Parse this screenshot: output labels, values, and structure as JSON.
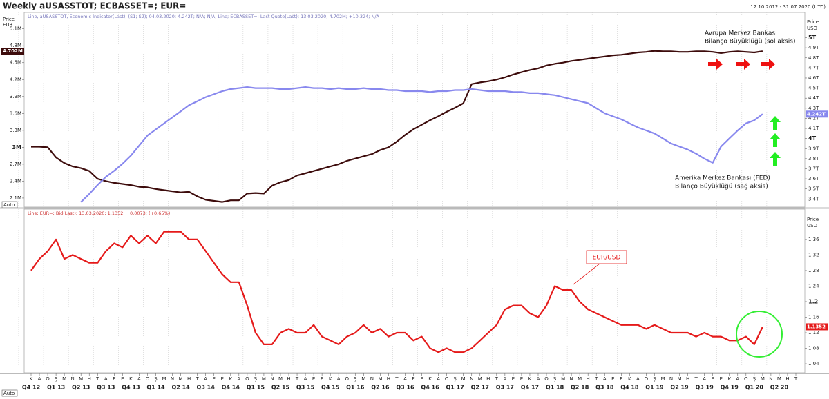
{
  "header": {
    "title": "Weekly aUSASSTOT; ECBASSET=; EUR=",
    "range": "12.10.2012 - 31.07.2020 (UTC)"
  },
  "chart_data": [
    {
      "type": "line",
      "legend": "Line, aUSASSTOT, Economic Indicator(Last), (S1; S2); 04.03.2020; 4.242T; N/A; N/A; Line; ECBASSET=; Last Quote(Last); 13.03.2020; 4.702M; +10.324; N/A",
      "ylabel": [
        "Price",
        "EUR"
      ],
      "y2label": [
        "Price",
        "USD"
      ],
      "auto": "Auto",
      "ylim": [
        1.94,
        5.39
      ],
      "yticks": [
        {
          "value": 5.1,
          "label": "5.1M"
        },
        {
          "value": 4.8,
          "label": "4.8M"
        },
        {
          "value": 4.5,
          "label": "4.5M"
        },
        {
          "value": 4.2,
          "label": "4.2M"
        },
        {
          "value": 3.9,
          "label": "3.9M"
        },
        {
          "value": 3.6,
          "label": "3.6M"
        },
        {
          "value": 3.3,
          "label": "3.3M"
        },
        {
          "value": 3,
          "label": "3M"
        },
        {
          "value": 2.7,
          "label": "2.7M"
        },
        {
          "value": 2.4,
          "label": "2.4M"
        },
        {
          "value": 2.1,
          "label": "2.1M"
        }
      ],
      "y2lim": [
        3.32,
        5.25
      ],
      "y2ticks": [
        {
          "value": 5,
          "label": "5T"
        },
        {
          "value": 4.9,
          "label": "4.9T"
        },
        {
          "value": 4.8,
          "label": "4.8T"
        },
        {
          "value": 4.7,
          "label": "4.7T"
        },
        {
          "value": 4.6,
          "label": "4.6T"
        },
        {
          "value": 4.5,
          "label": "4.5T"
        },
        {
          "value": 4.4,
          "label": "4.4T"
        },
        {
          "value": 4.3,
          "label": "4.3T"
        },
        {
          "value": 4.2,
          "label": "4.2T"
        },
        {
          "value": 4.1,
          "label": "4.1T"
        },
        {
          "value": 4,
          "label": "4T"
        },
        {
          "value": 3.9,
          "label": "3.9T"
        },
        {
          "value": 3.8,
          "label": "3.8T"
        },
        {
          "value": 3.7,
          "label": "3.7T"
        },
        {
          "value": 3.6,
          "label": "3.6T"
        },
        {
          "value": 3.5,
          "label": "3.5T"
        },
        {
          "value": 3.4,
          "label": "3.4T"
        }
      ],
      "series": [
        {
          "color": "#3d0c0c",
          "axis": "y",
          "values": [
            3.01,
            3.01,
            3.0,
            2.82,
            2.72,
            2.66,
            2.63,
            2.58,
            2.44,
            2.4,
            2.37,
            2.35,
            2.33,
            2.3,
            2.29,
            2.26,
            2.24,
            2.22,
            2.2,
            2.21,
            2.13,
            2.07,
            2.05,
            2.03,
            2.06,
            2.06,
            2.18,
            2.19,
            2.18,
            2.32,
            2.38,
            2.42,
            2.5,
            2.54,
            2.58,
            2.62,
            2.66,
            2.7,
            2.76,
            2.8,
            2.84,
            2.88,
            2.95,
            3.0,
            3.1,
            3.22,
            3.32,
            3.4,
            3.48,
            3.55,
            3.63,
            3.7,
            3.78,
            4.12,
            4.15,
            4.17,
            4.2,
            4.24,
            4.29,
            4.33,
            4.37,
            4.4,
            4.45,
            4.48,
            4.5,
            4.53,
            4.55,
            4.57,
            4.59,
            4.61,
            4.63,
            4.64,
            4.66,
            4.68,
            4.69,
            4.71,
            4.7,
            4.7,
            4.69,
            4.69,
            4.7,
            4.7,
            4.69,
            4.67,
            4.69,
            4.7,
            4.69,
            4.68,
            4.702,
            null,
            null,
            null,
            null
          ],
          "value_labels": [
            null,
            null,
            null,
            null,
            null,
            null,
            null,
            null,
            null,
            null,
            null,
            null,
            null,
            null,
            null,
            null,
            null,
            null,
            null,
            null,
            null,
            null,
            null,
            null,
            null,
            null,
            null,
            null,
            null,
            null,
            null,
            null,
            null,
            null,
            null,
            null,
            null,
            null,
            null,
            null,
            null,
            null,
            null,
            null,
            null,
            null,
            null,
            null,
            null,
            null,
            null,
            null,
            null,
            null,
            null,
            null,
            null,
            null,
            null,
            null,
            null,
            null,
            null,
            null,
            null,
            null,
            null,
            null,
            null,
            null,
            null,
            null,
            null,
            null,
            null,
            null,
            null,
            null,
            null,
            null,
            null,
            null,
            null,
            null,
            null,
            null,
            null,
            null,
            "4.702M",
            null,
            null,
            null,
            null
          ]
        },
        {
          "color": "#8888ee",
          "axis": "y2",
          "values": [
            null,
            null,
            null,
            null,
            null,
            null,
            3.37,
            3.45,
            3.54,
            3.62,
            3.68,
            3.75,
            3.83,
            3.93,
            4.03,
            4.09,
            4.15,
            4.21,
            4.27,
            4.33,
            4.37,
            4.41,
            4.44,
            4.47,
            4.49,
            4.5,
            4.51,
            4.5,
            4.5,
            4.5,
            4.49,
            4.49,
            4.5,
            4.51,
            4.5,
            4.5,
            4.49,
            4.5,
            4.49,
            4.49,
            4.5,
            4.49,
            4.49,
            4.48,
            4.48,
            4.47,
            4.47,
            4.47,
            4.46,
            4.47,
            4.47,
            4.48,
            4.48,
            4.49,
            4.48,
            4.47,
            4.47,
            4.47,
            4.46,
            4.46,
            4.45,
            4.45,
            4.44,
            4.43,
            4.41,
            4.39,
            4.37,
            4.35,
            4.3,
            4.25,
            4.22,
            4.19,
            4.15,
            4.11,
            4.08,
            4.05,
            4.0,
            3.95,
            3.92,
            3.89,
            3.85,
            3.8,
            3.76,
            3.92,
            4.0,
            4.08,
            4.15,
            4.18,
            4.242,
            null,
            null,
            null,
            null
          ],
          "value_labels": [
            null,
            null,
            null,
            null,
            null,
            null,
            null,
            null,
            null,
            null,
            null,
            null,
            null,
            null,
            null,
            null,
            null,
            null,
            null,
            null,
            null,
            null,
            null,
            null,
            null,
            null,
            null,
            null,
            null,
            null,
            null,
            null,
            null,
            null,
            null,
            null,
            null,
            null,
            null,
            null,
            null,
            null,
            null,
            null,
            null,
            null,
            null,
            null,
            null,
            null,
            null,
            null,
            null,
            null,
            null,
            null,
            null,
            null,
            null,
            null,
            null,
            null,
            null,
            null,
            null,
            null,
            null,
            null,
            null,
            null,
            null,
            null,
            null,
            null,
            null,
            null,
            null,
            null,
            null,
            null,
            null,
            null,
            null,
            null,
            null,
            null,
            null,
            null,
            "4.242T",
            null,
            null,
            null,
            null
          ]
        }
      ],
      "annotations": [
        {
          "lines": [
            "Avrupa Merkez Bankası",
            "Bilanço Büyüklüğü (sol aksis)"
          ]
        },
        {
          "lines": [
            "Amerika Merkez Bankası (FED)",
            "Bilanço Büyüklüğü (sağ aksis)"
          ]
        }
      ]
    },
    {
      "type": "line",
      "legend": "Line; EUR=; Bid(Last); 13.03.2020; 1.1352; +0.0073; (+0.65%)",
      "y2label": [
        "Price",
        "USD"
      ],
      "auto": "Auto",
      "categories": [
        "K",
        "A",
        "O",
        "Ş",
        "M",
        "N",
        "M",
        "H",
        "T",
        "A",
        "E",
        "E",
        "K",
        "A",
        "O",
        "Ş",
        "M",
        "N",
        "M",
        "H",
        "T",
        "A",
        "E",
        "E",
        "K",
        "A",
        "O",
        "Ş",
        "M",
        "N",
        "M",
        "H",
        "T",
        "A",
        "E",
        "E",
        "K",
        "A",
        "O",
        "Ş",
        "M",
        "N",
        "M",
        "H",
        "T",
        "A",
        "E",
        "E",
        "K",
        "A",
        "O",
        "Ş",
        "M",
        "N",
        "M",
        "H",
        "T",
        "A",
        "E",
        "E",
        "K",
        "A",
        "O",
        "Ş",
        "M",
        "N",
        "M",
        "H",
        "T",
        "A",
        "E",
        "E",
        "K",
        "A",
        "O",
        "Ş",
        "M",
        "N",
        "M",
        "H",
        "T",
        "A",
        "E",
        "E",
        "K",
        "A",
        "O",
        "Ş",
        "M",
        "N",
        "M",
        "H",
        "T"
      ],
      "quarters": [
        "Q4 12",
        "Q1 13",
        "Q2 13",
        "Q3 13",
        "Q4 13",
        "Q1 14",
        "Q2 14",
        "Q3 14",
        "Q4 14",
        "Q1 15",
        "Q2 15",
        "Q3 15",
        "Q4 15",
        "Q1 16",
        "Q2 16",
        "Q3 16",
        "Q4 16",
        "Q1 17",
        "Q2 17",
        "Q3 17",
        "Q4 17",
        "Q1 18",
        "Q2 18",
        "Q3 18",
        "Q4 18",
        "Q1 19",
        "Q2 19",
        "Q3 19",
        "Q4 19",
        "Q1 20",
        "Q2 20"
      ],
      "y2lim": [
        1.017,
        1.438
      ],
      "y2ticks": [
        1.36,
        1.32,
        1.28,
        1.24,
        1.2,
        1.16,
        1.12,
        1.08,
        1.04
      ],
      "series": [
        {
          "color": "#e51a1a",
          "axis": "y2",
          "values": [
            1.28,
            1.31,
            1.33,
            1.36,
            1.31,
            1.32,
            1.31,
            1.3,
            1.3,
            1.33,
            1.35,
            1.34,
            1.37,
            1.35,
            1.37,
            1.35,
            1.38,
            1.38,
            1.38,
            1.36,
            1.36,
            1.33,
            1.3,
            1.27,
            1.25,
            1.25,
            1.19,
            1.12,
            1.09,
            1.09,
            1.12,
            1.13,
            1.12,
            1.12,
            1.14,
            1.11,
            1.1,
            1.09,
            1.11,
            1.12,
            1.14,
            1.12,
            1.13,
            1.11,
            1.12,
            1.12,
            1.1,
            1.11,
            1.08,
            1.07,
            1.08,
            1.07,
            1.07,
            1.08,
            1.1,
            1.12,
            1.14,
            1.18,
            1.19,
            1.19,
            1.17,
            1.16,
            1.19,
            1.24,
            1.23,
            1.23,
            1.2,
            1.18,
            1.17,
            1.16,
            1.15,
            1.14,
            1.14,
            1.14,
            1.13,
            1.14,
            1.13,
            1.12,
            1.12,
            1.12,
            1.11,
            1.12,
            1.11,
            1.11,
            1.1,
            1.1,
            1.11,
            1.09,
            1.1352,
            null,
            null,
            null,
            null
          ],
          "value_labels": [
            null,
            null,
            null,
            null,
            null,
            null,
            null,
            null,
            null,
            null,
            null,
            null,
            null,
            null,
            null,
            null,
            null,
            null,
            null,
            null,
            null,
            null,
            null,
            null,
            null,
            null,
            null,
            null,
            null,
            null,
            null,
            null,
            null,
            null,
            null,
            null,
            null,
            null,
            null,
            null,
            null,
            null,
            null,
            null,
            null,
            null,
            null,
            null,
            null,
            null,
            null,
            null,
            null,
            null,
            null,
            null,
            null,
            null,
            null,
            null,
            null,
            null,
            null,
            null,
            null,
            null,
            null,
            null,
            null,
            null,
            null,
            null,
            null,
            null,
            null,
            null,
            null,
            null,
            null,
            null,
            null,
            null,
            null,
            null,
            null,
            null,
            null,
            null,
            "1.1352",
            null,
            null,
            null,
            null
          ]
        }
      ],
      "annotations": [
        {
          "lines": [
            "EUR/USD"
          ]
        }
      ]
    }
  ]
}
